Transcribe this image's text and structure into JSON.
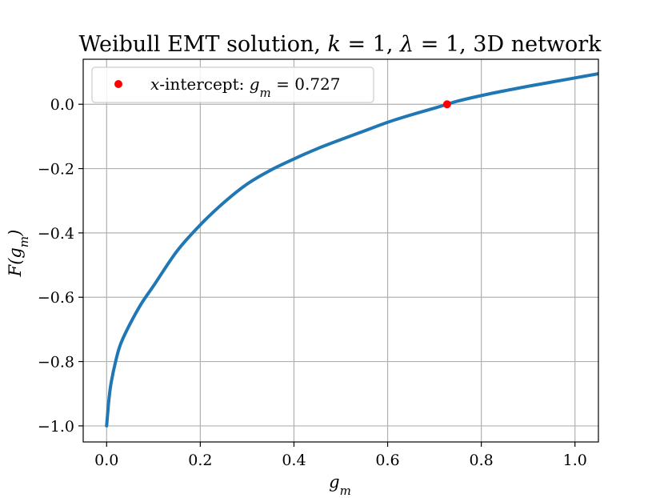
{
  "chart_data": {
    "type": "line",
    "title": "Weibull EMT solution, k = 1, λ = 1, 3D network",
    "xlabel": "g_m",
    "ylabel": "F(g_m)",
    "xlim": [
      -0.05,
      1.05
    ],
    "ylim": [
      -1.05,
      0.14
    ],
    "xticks": [
      0.0,
      0.2,
      0.4,
      0.6,
      0.8,
      1.0
    ],
    "xtick_labels": [
      "0.0",
      "0.2",
      "0.4",
      "0.6",
      "0.8",
      "1.0"
    ],
    "yticks": [
      -1.0,
      -0.8,
      -0.6,
      -0.4,
      -0.2,
      0.0
    ],
    "ytick_labels": [
      "−1.0",
      "−0.8",
      "−0.6",
      "−0.4",
      "−0.2",
      "0.0"
    ],
    "grid": true,
    "legend_position": "top-left",
    "series": [
      {
        "color": "#1f77b4",
        "x": [
          0.0,
          0.005,
          0.01,
          0.02,
          0.03,
          0.05,
          0.075,
          0.1,
          0.15,
          0.2,
          0.25,
          0.3,
          0.35,
          0.4,
          0.45,
          0.5,
          0.55,
          0.6,
          0.65,
          0.7,
          0.727,
          0.75,
          0.8,
          0.85,
          0.9,
          0.95,
          1.0,
          1.05
        ],
        "y": [
          -1.0,
          -0.917,
          -0.863,
          -0.795,
          -0.745,
          -0.683,
          -0.618,
          -0.565,
          -0.457,
          -0.375,
          -0.306,
          -0.248,
          -0.205,
          -0.17,
          -0.138,
          -0.11,
          -0.083,
          -0.056,
          -0.033,
          -0.012,
          0.0,
          0.01,
          0.027,
          0.042,
          0.056,
          0.069,
          0.082,
          0.095
        ]
      },
      {
        "name": "x-intercept: g_m = 0.727",
        "type": "scatter",
        "color": "#ff0000",
        "x": [
          0.727
        ],
        "y": [
          0.0
        ]
      }
    ]
  }
}
